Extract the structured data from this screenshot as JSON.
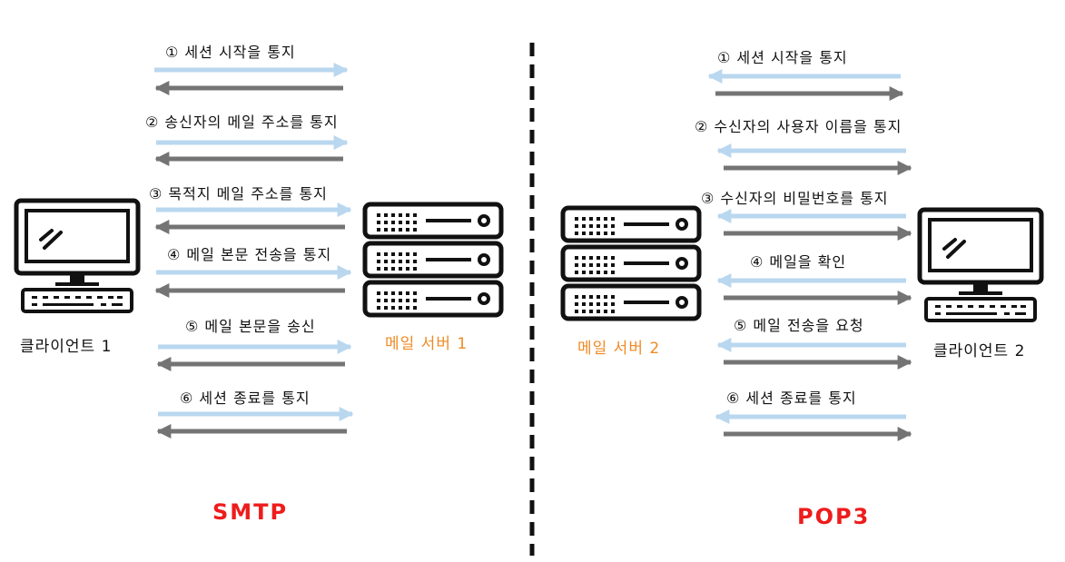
{
  "colors": {
    "request": "#b9d7ef",
    "response": "#747474",
    "server_label": "#f08a24",
    "protocol": "#ee1c1c"
  },
  "smtp": {
    "protocol": "SMTP",
    "client_label": "클라이언트 1",
    "server_label": "메일 서버 1",
    "steps": [
      "① 세션 시작을 통지",
      "② 송신자의 메일 주소를 통지",
      "③ 목적지 메일 주소를 통지",
      "④ 메일 본문 전송을 통지",
      "⑤ 메일 본문을 송신",
      "⑥ 세션 종료를 통지"
    ]
  },
  "pop3": {
    "protocol": "POP3",
    "client_label": "클라이언트 2",
    "server_label": "메일 서버 2",
    "steps": [
      "① 세션 시작을 통지",
      "② 수신자의 사용자 이름을 통지",
      "③ 수신자의 비밀번호를 통지",
      "④ 메일을 확인",
      "⑤ 메일 전송을 요청",
      "⑥ 세션 종료를 통지"
    ]
  },
  "icons": [
    "computer-icon",
    "server-icon"
  ]
}
